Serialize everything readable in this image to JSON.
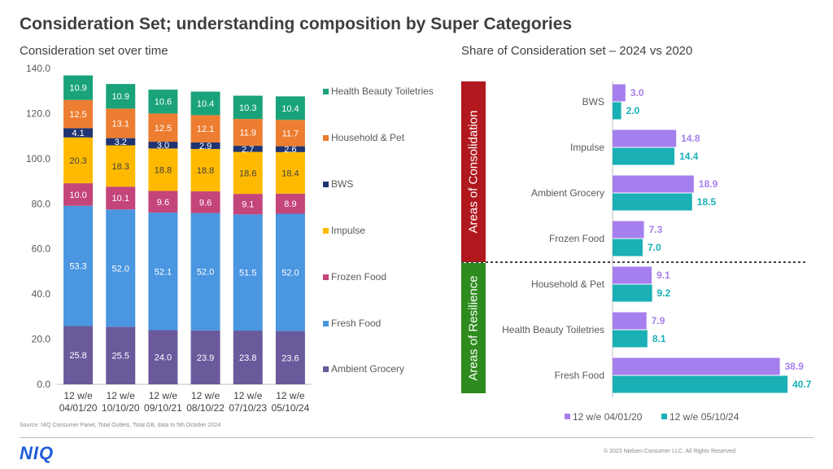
{
  "title": "Consideration Set; understanding composition by Super Categories",
  "left_subtitle": "Consideration set over time",
  "right_subtitle": "Share of Consideration set – 2024 vs 2020",
  "source_note": "Source: NIQ Consumer Panel, Total Outlets, Total GB, data to 5th October 2024",
  "logo": "NIQ",
  "copyright": "© 2023 Nielsen Consumer LLC. All Rights Reserved.",
  "colors": {
    "ambient": "#6a5a9c",
    "fresh": "#4a96e0",
    "frozen": "#c4457a",
    "impulse": "#ffba00",
    "bws": "#1f3470",
    "household": "#ed7d31",
    "hbt": "#1aa37a",
    "series_2020": "#a67fee",
    "series_2024": "#1ab0b5",
    "consolidation": "#b0181e",
    "resilience": "#2e8b1e"
  },
  "chart_data": [
    {
      "type": "bar",
      "stacked": true,
      "categories": [
        "12 w/e 04/01/20",
        "12 w/e 10/10/20",
        "12 w/e 09/10/21",
        "12 w/e 08/10/22",
        "12 w/e 07/10/23",
        "12 w/e 05/10/24"
      ],
      "series": [
        {
          "name": "Ambient Grocery",
          "color": "#6a5a9c",
          "values": [
            25.8,
            25.5,
            24.0,
            23.9,
            23.8,
            23.6
          ]
        },
        {
          "name": "Fresh Food",
          "color": "#4a96e0",
          "values": [
            53.3,
            52.0,
            52.1,
            52.0,
            51.5,
            52.0
          ]
        },
        {
          "name": "Frozen Food",
          "color": "#c4457a",
          "values": [
            10.0,
            10.1,
            9.6,
            9.6,
            9.1,
            8.9
          ]
        },
        {
          "name": "Impulse",
          "color": "#ffba00",
          "values": [
            20.3,
            18.3,
            18.8,
            18.8,
            18.6,
            18.4
          ]
        },
        {
          "name": "BWS",
          "color": "#1f3470",
          "values": [
            4.1,
            3.2,
            3.0,
            2.9,
            2.7,
            2.6
          ]
        },
        {
          "name": "Household & Pet",
          "color": "#ed7d31",
          "values": [
            12.5,
            13.1,
            12.5,
            12.1,
            11.9,
            11.7
          ]
        },
        {
          "name": "Health Beauty Toiletries",
          "color": "#1aa37a",
          "values": [
            10.9,
            10.9,
            10.6,
            10.4,
            10.3,
            10.4
          ]
        }
      ],
      "yticks": [
        "0.0",
        "20.0",
        "40.0",
        "60.0",
        "80.0",
        "100.0",
        "120.0",
        "140.0"
      ],
      "ylim": [
        0,
        140
      ],
      "legend": "right",
      "grid": false
    },
    {
      "type": "bar",
      "orientation": "horizontal",
      "categories": [
        "BWS",
        "Impulse",
        "Ambient Grocery",
        "Frozen Food",
        "Household & Pet",
        "Health Beauty Toiletries",
        "Fresh Food"
      ],
      "series": [
        {
          "name": "12 w/e 04/01/20",
          "color": "#a67fee",
          "values": [
            3.0,
            14.8,
            18.9,
            7.3,
            9.1,
            7.9,
            38.9
          ]
        },
        {
          "name": "12 w/e 05/10/24",
          "color": "#1ab0b5",
          "values": [
            2.0,
            14.4,
            18.5,
            7.0,
            9.2,
            8.1,
            40.7
          ]
        }
      ],
      "groups": [
        {
          "label": "Areas of Consolidation",
          "color": "#b0181e",
          "categories": [
            "BWS",
            "Impulse",
            "Ambient Grocery",
            "Frozen Food"
          ]
        },
        {
          "label": "Areas of Resilience",
          "color": "#2e8b1e",
          "categories": [
            "Household & Pet",
            "Health Beauty Toiletries",
            "Fresh Food"
          ]
        }
      ],
      "legend": "bottom",
      "grid": false
    }
  ]
}
